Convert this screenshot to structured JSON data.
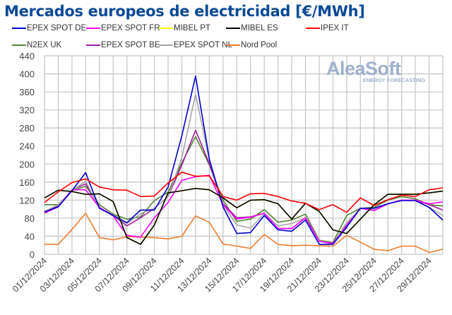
{
  "chart_data": {
    "type": "line",
    "title": "Mercados europeos de electricidad [€/MWh]",
    "xlabel": "",
    "ylabel": "",
    "ylim": [
      0,
      440
    ],
    "yticks": [
      0,
      40,
      80,
      120,
      160,
      200,
      240,
      280,
      320,
      360,
      400,
      440
    ],
    "grid": true,
    "legend_position": "top",
    "x": [
      "01/12/2024",
      "02/12/2024",
      "03/12/2024",
      "04/12/2024",
      "05/12/2024",
      "06/12/2024",
      "07/12/2024",
      "08/12/2024",
      "09/12/2024",
      "10/12/2024",
      "11/12/2024",
      "12/12/2024",
      "13/12/2024",
      "14/12/2024",
      "15/12/2024",
      "16/12/2024",
      "17/12/2024",
      "18/12/2024",
      "19/12/2024",
      "20/12/2024",
      "21/12/2024",
      "22/12/2024",
      "23/12/2024",
      "24/12/2024",
      "25/12/2024",
      "26/12/2024",
      "27/12/2024",
      "28/12/2024",
      "29/12/2024",
      "30/12/2024"
    ],
    "xtick_labels": [
      "01/12/2024",
      "03/12/2024",
      "05/12/2024",
      "07/12/2024",
      "09/12/2024",
      "11/12/2024",
      "13/12/2024",
      "15/12/2024",
      "17/12/2024",
      "19/12/2024",
      "21/12/2024",
      "23/12/2024",
      "25/12/2024",
      "27/12/2024",
      "29/12/2024"
    ],
    "series": [
      {
        "name": "Nord Pool",
        "color": "#ed7d31",
        "values": [
          22,
          22,
          55,
          91,
          37,
          32,
          39,
          38,
          37,
          34,
          40,
          85,
          71,
          23,
          18,
          13,
          44,
          22,
          19,
          20,
          19,
          18,
          42,
          27,
          11,
          8,
          18,
          18,
          4,
          11
        ]
      },
      {
        "name": "N2EX UK",
        "color": "#548235",
        "values": [
          110,
          110,
          141,
          151,
          110,
          89,
          78,
          83,
          119,
          138,
          203,
          261,
          198,
          120,
          73,
          78,
          99,
          71,
          76,
          89,
          31,
          26,
          86,
          102,
          104,
          120,
          128,
          123,
          110,
          107
        ]
      },
      {
        "name": "EPEX SPOT BE",
        "color": "#9e1fa0",
        "values": [
          94,
          107,
          143,
          156,
          104,
          86,
          63,
          81,
          102,
          128,
          198,
          275,
          201,
          112,
          81,
          83,
          91,
          57,
          57,
          81,
          29,
          25,
          65,
          102,
          97,
          112,
          120,
          120,
          110,
          98
        ]
      },
      {
        "name": "EPEX SPOT NL",
        "color": "#a6a6a6",
        "values": [
          95,
          110,
          141,
          162,
          102,
          86,
          68,
          90,
          102,
          128,
          214,
          355,
          209,
          110,
          65,
          58,
          90,
          63,
          68,
          81,
          30,
          23,
          70,
          102,
          98,
          112,
          120,
          120,
          104,
          86
        ]
      },
      {
        "name": "EPEX SPOT FR",
        "color": "#ff00ff",
        "values": [
          91,
          105,
          143,
          143,
          104,
          85,
          42,
          38,
          81,
          115,
          164,
          172,
          175,
          110,
          78,
          82,
          91,
          57,
          57,
          81,
          29,
          23,
          63,
          102,
          97,
          112,
          120,
          120,
          112,
          116
        ]
      },
      {
        "name": "EPEX SPOT DE",
        "color": "#0000cc",
        "values": [
          94,
          105,
          141,
          181,
          102,
          86,
          70,
          98,
          98,
          149,
          263,
          395,
          211,
          105,
          46,
          48,
          86,
          54,
          51,
          76,
          22,
          22,
          60,
          102,
          102,
          112,
          119,
          119,
          104,
          76
        ]
      },
      {
        "name": "MIBEL PT",
        "color": "#ffff00",
        "values": [
          125,
          142,
          139,
          133,
          134,
          117,
          37,
          22,
          65,
          136,
          141,
          146,
          143,
          125,
          103,
          120,
          121,
          112,
          78,
          113,
          95,
          54,
          46,
          78,
          110,
          133,
          133,
          133,
          136,
          140
        ]
      },
      {
        "name": "MIBEL ES",
        "color": "#000000",
        "values": [
          125,
          142,
          139,
          133,
          134,
          117,
          37,
          22,
          65,
          136,
          141,
          146,
          143,
          125,
          103,
          120,
          121,
          112,
          78,
          113,
          95,
          54,
          46,
          78,
          110,
          133,
          133,
          133,
          136,
          140
        ]
      },
      {
        "name": "IPEX IT",
        "color": "#ff0000",
        "values": [
          115,
          138,
          159,
          167,
          149,
          143,
          142,
          128,
          129,
          158,
          182,
          173,
          174,
          128,
          120,
          134,
          135,
          128,
          118,
          113,
          99,
          110,
          93,
          125,
          108,
          121,
          131,
          128,
          143,
          147
        ]
      }
    ],
    "legend_order": [
      "EPEX SPOT DE",
      "EPEX SPOT FR",
      "MIBEL PT",
      "MIBEL ES",
      "IPEX IT",
      "N2EX UK",
      "EPEX SPOT BE",
      "EPEX SPOT NL",
      "Nord Pool"
    ],
    "watermark": {
      "brand": "AleaSoft",
      "tagline": "ENERGY FORECASTING"
    }
  }
}
